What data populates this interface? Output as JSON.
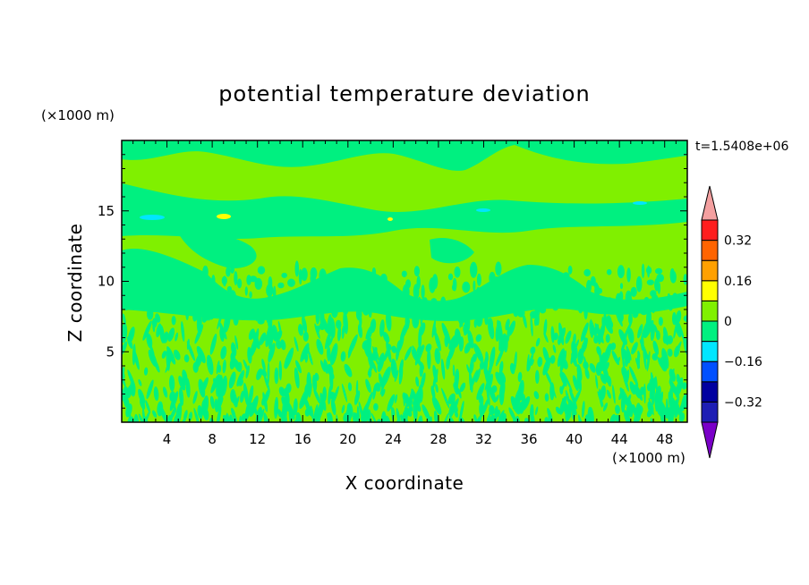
{
  "chart_data": {
    "type": "heatmap",
    "title": "potential temperature deviation",
    "xlabel": "X coordinate",
    "ylabel": "Z coordinate",
    "x_unit": "(×1000 m)",
    "y_unit": "(×1000 m)",
    "time_label": "t=1.5408e+06",
    "xlim": [
      0,
      50
    ],
    "ylim": [
      0,
      20
    ],
    "x_ticks": [
      4,
      8,
      12,
      16,
      20,
      24,
      28,
      32,
      36,
      40,
      44,
      48
    ],
    "x_tick_labels": [
      "4",
      "8",
      "12",
      "16",
      "20",
      "24",
      "28",
      "32",
      "36",
      "40",
      "44",
      "48"
    ],
    "y_ticks": [
      5,
      10,
      15
    ],
    "y_tick_labels": [
      "5",
      "10",
      "15"
    ],
    "colorbar": {
      "levels": [
        -0.4,
        -0.32,
        -0.24,
        -0.16,
        -0.08,
        0,
        0.08,
        0.16,
        0.24,
        0.32,
        0.4
      ],
      "tick_values": [
        -0.32,
        -0.16,
        0,
        0.16,
        0.32
      ],
      "tick_labels": [
        "−0.32",
        "−0.16",
        "0",
        "0.16",
        "0.32"
      ],
      "colors": [
        "#1e1eb4",
        "#0000a0",
        "#0050ff",
        "#00e6ff",
        "#00f080",
        "#80f000",
        "#ffff00",
        "#ffa000",
        "#ff6400",
        "#ff1e1e"
      ],
      "under_color": "#7a00c8",
      "over_color": "#f4a0a0",
      "extend": "both"
    },
    "field_description_levels": {
      "dominant_positive": 0.02,
      "dominant_negative": -0.02,
      "upper_cold_spots": -0.1,
      "upper_warm_spot": 0.14
    }
  }
}
